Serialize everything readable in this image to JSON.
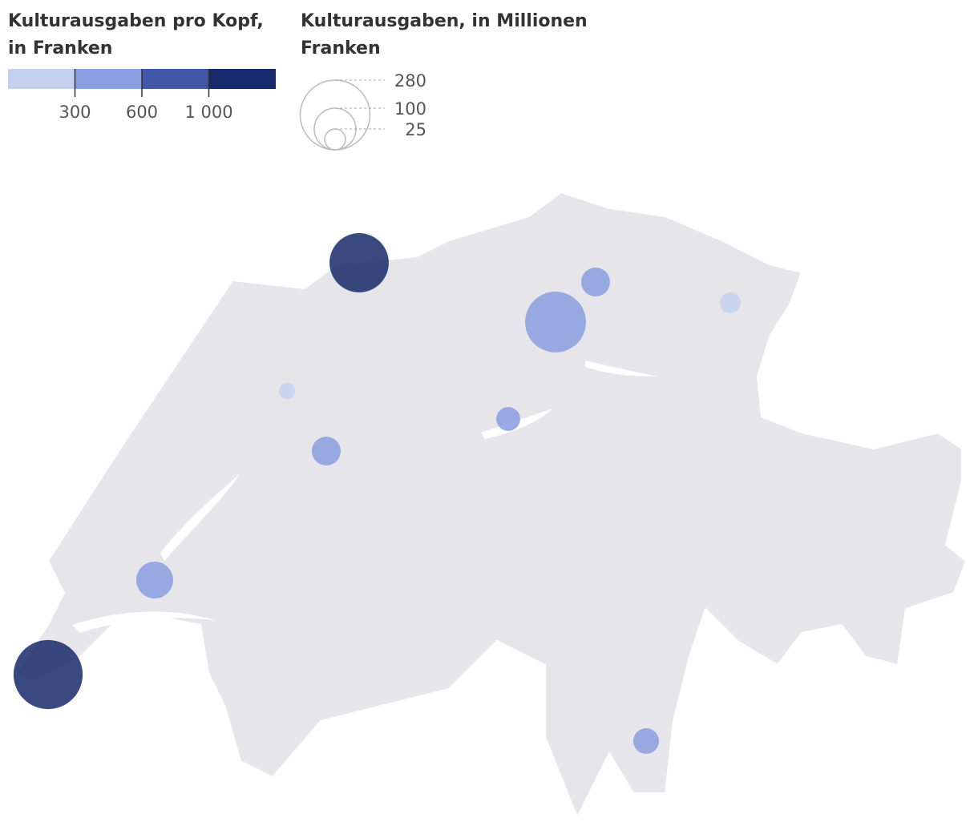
{
  "chart_data": {
    "type": "bubble_map",
    "color_title": "Kulturausgaben pro Kopf, in Franken",
    "colors": [
      "#c5d0f0",
      "#8a9de0",
      "#4157a8",
      "#172a6b"
    ],
    "color_ticks": [
      300,
      600,
      {
        "value": 1000,
        "label": "1 000"
      }
    ],
    "size_title": "Kulturausgaben, in Millionen Franken",
    "size_ticks": [
      280,
      100,
      25
    ],
    "map_color": "#e6e6ea",
    "values": [
      202,
      275,
      213,
      48,
      25,
      15,
      48,
      33,
      78,
      38
    ],
    "per_capita": [
      1100,
      1200,
      450,
      450,
      200,
      200,
      450,
      450,
      450,
      450
    ]
  }
}
